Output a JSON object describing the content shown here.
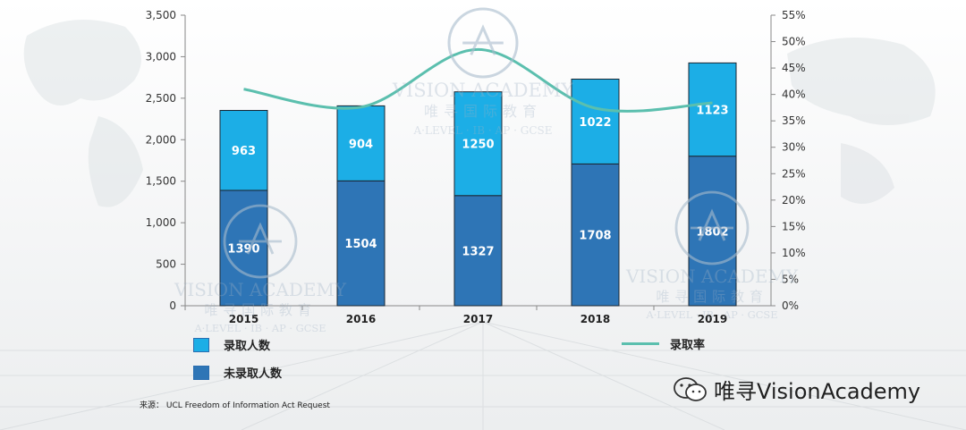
{
  "chart_data": {
    "type": "bar",
    "stacked": true,
    "categories": [
      "2015",
      "2016",
      "2017",
      "2018",
      "2019"
    ],
    "series": [
      {
        "name": "未录取人数",
        "values": [
          1390,
          1504,
          1327,
          1708,
          1802
        ],
        "color": "#2e75b6"
      },
      {
        "name": "录取人数",
        "values": [
          963,
          904,
          1250,
          1022,
          1123
        ],
        "color": "#1caee6"
      }
    ],
    "line_series": {
      "name": "录取率",
      "values": [
        41.0,
        37.6,
        48.5,
        37.4,
        38.4
      ],
      "color": "#5bbfae",
      "axis": "right"
    },
    "ylim": [
      0,
      3500
    ],
    "y_ticks": [
      "0",
      "500",
      "1,000",
      "1,500",
      "2,000",
      "2,500",
      "3,000",
      "3,500"
    ],
    "y2lim": [
      0,
      55
    ],
    "y2_ticks": [
      "0%",
      "5%",
      "10%",
      "15%",
      "20%",
      "25%",
      "30%",
      "35%",
      "40%",
      "45%",
      "50%",
      "55%"
    ],
    "grid": false,
    "legend_position": "bottom"
  },
  "legend": {
    "admitted": "录取人数",
    "not_admitted": "未录取人数",
    "rate": "录取率"
  },
  "source": "来源： UCL Freedom of Information Act Request",
  "brand": "唯寻VisionAcademy",
  "watermark": {
    "name": "VISION ACADEMY",
    "chinese": "唯寻国际教育",
    "subtitle": "A·LEVEL · IB · AP · GCSE"
  }
}
